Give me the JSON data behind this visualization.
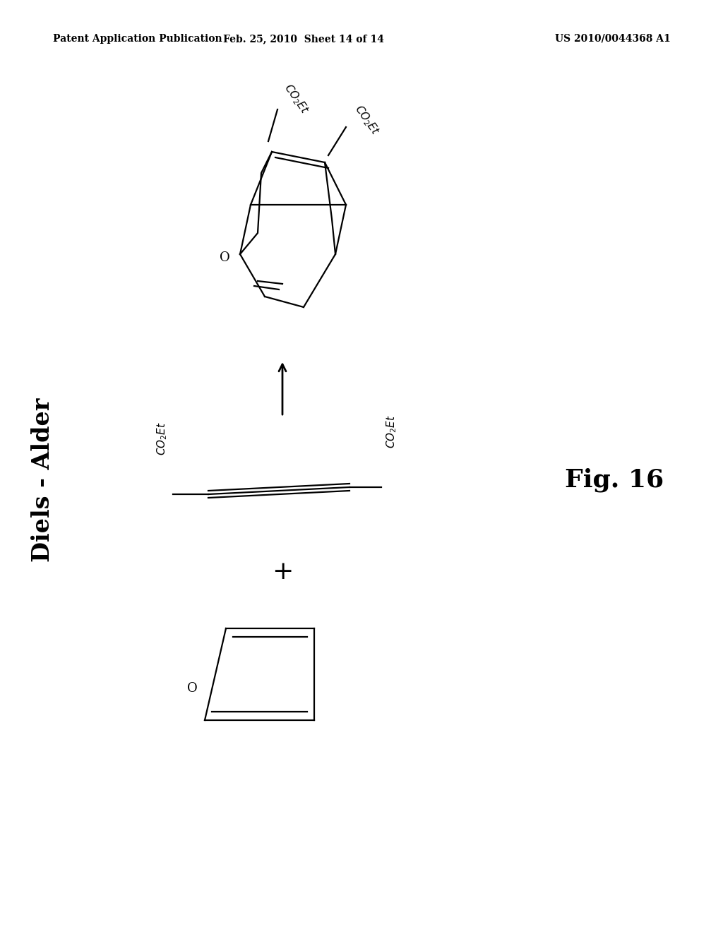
{
  "background_color": "#ffffff",
  "header_left": "Patent Application Publication",
  "header_mid": "Feb. 25, 2010  Sheet 14 of 14",
  "header_right": "US 2010/0044368 A1",
  "header_fontsize": 10,
  "label_diels_alder": "Diels - Alder",
  "label_fig": "Fig. 16",
  "label_fontsize_da": 24,
  "label_fontsize_fig": 26,
  "text_CO2Et_fontsize": 11,
  "plus_fontsize": 26,
  "line_color": "#000000",
  "line_width": 1.6
}
